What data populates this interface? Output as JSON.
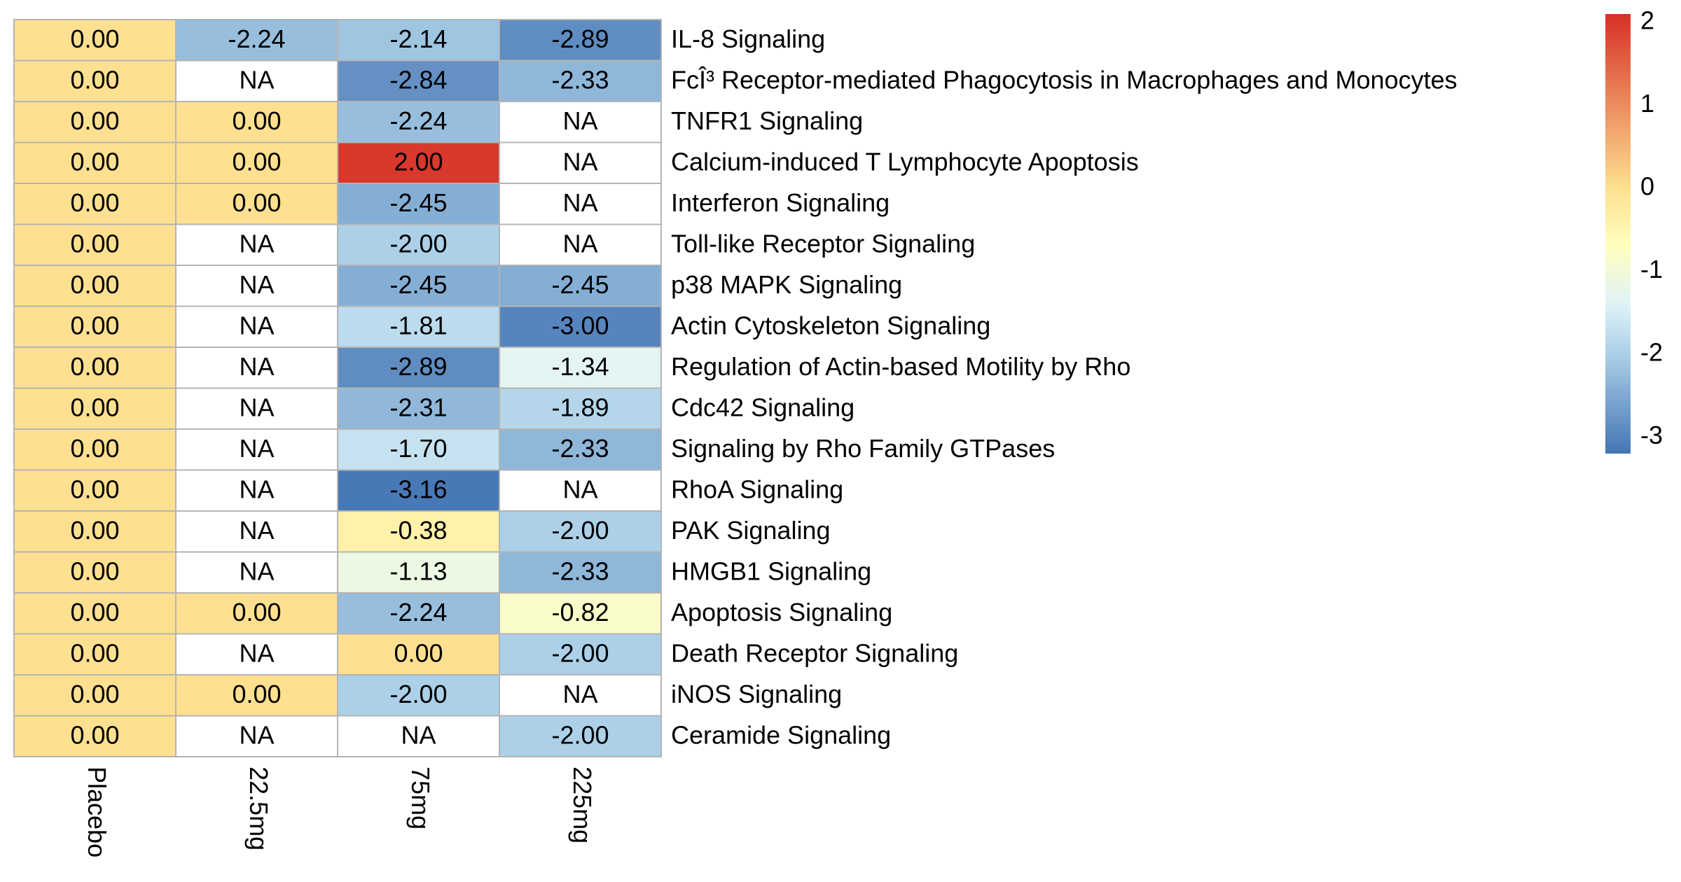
{
  "chart_data": {
    "type": "heatmap",
    "columns": [
      "Placebo",
      "22.5mg",
      "75mg",
      "225mg"
    ],
    "rows": [
      {
        "label": "IL-8 Signaling",
        "values": [
          "0.00",
          "-2.24",
          "-2.14",
          "-2.89"
        ]
      },
      {
        "label": "FcÎ³ Receptor-mediated Phagocytosis in Macrophages and Monocytes",
        "values": [
          "0.00",
          "NA",
          "-2.84",
          "-2.33"
        ]
      },
      {
        "label": "TNFR1 Signaling",
        "values": [
          "0.00",
          "0.00",
          "-2.24",
          "NA"
        ]
      },
      {
        "label": "Calcium-induced T Lymphocyte Apoptosis",
        "values": [
          "0.00",
          "0.00",
          "2.00",
          "NA"
        ]
      },
      {
        "label": "Interferon Signaling",
        "values": [
          "0.00",
          "0.00",
          "-2.45",
          "NA"
        ]
      },
      {
        "label": "Toll-like Receptor Signaling",
        "values": [
          "0.00",
          "NA",
          "-2.00",
          "NA"
        ]
      },
      {
        "label": "p38 MAPK Signaling",
        "values": [
          "0.00",
          "NA",
          "-2.45",
          "-2.45"
        ]
      },
      {
        "label": "Actin Cytoskeleton Signaling",
        "values": [
          "0.00",
          "NA",
          "-1.81",
          "-3.00"
        ]
      },
      {
        "label": "Regulation of Actin-based Motility by Rho",
        "values": [
          "0.00",
          "NA",
          "-2.89",
          "-1.34"
        ]
      },
      {
        "label": "Cdc42 Signaling",
        "values": [
          "0.00",
          "NA",
          "-2.31",
          "-1.89"
        ]
      },
      {
        "label": "Signaling by Rho Family GTPases",
        "values": [
          "0.00",
          "NA",
          "-1.70",
          "-2.33"
        ]
      },
      {
        "label": "RhoA Signaling",
        "values": [
          "0.00",
          "NA",
          "-3.16",
          "NA"
        ]
      },
      {
        "label": "PAK Signaling",
        "values": [
          "0.00",
          "NA",
          "-0.38",
          "-2.00"
        ]
      },
      {
        "label": "HMGB1 Signaling",
        "values": [
          "0.00",
          "NA",
          "-1.13",
          "-2.33"
        ]
      },
      {
        "label": "Apoptosis Signaling",
        "values": [
          "0.00",
          "0.00",
          "-2.24",
          "-0.82"
        ]
      },
      {
        "label": "Death Receptor Signaling",
        "values": [
          "0.00",
          "NA",
          "0.00",
          "-2.00"
        ]
      },
      {
        "label": "iNOS Signaling",
        "values": [
          "0.00",
          "0.00",
          "-2.00",
          "NA"
        ]
      },
      {
        "label": "Ceramide Signaling",
        "values": [
          "0.00",
          "NA",
          "NA",
          "-2.00"
        ]
      }
    ],
    "colorbar": {
      "ticks": [
        "2",
        "1",
        "0",
        "-1",
        "-2",
        "-3"
      ],
      "range": [
        -3.2,
        2.1
      ],
      "position": "right"
    },
    "colors": {
      "low": "#4575b4",
      "mid_low": "#abd0e7",
      "mid_low_light": "#e0f3f8",
      "mid": "#ffffbf",
      "mid_high": "#fee090",
      "high": "#d73027",
      "na": "#ffffff",
      "cell_border": "#b4b4b4"
    }
  }
}
